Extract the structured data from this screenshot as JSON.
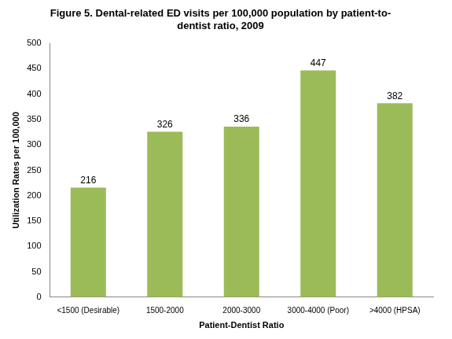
{
  "chart_data": {
    "type": "bar",
    "title": "Figure 5. Dental-related ED visits per 100,000 population by patient-to-dentist ratio, 2009",
    "x_label": "Patient-Dentist Ratio",
    "y_label": "Utilization Rates per 100,000",
    "categories": [
      "<1500 (Desirable)",
      "1500-2000",
      "2000-3000",
      "3000-4000 (Poor)",
      ">4000 (HPSA)"
    ],
    "values": [
      216,
      326,
      336,
      447,
      382
    ],
    "color": "#9bbb59",
    "ylim": [
      0,
      500
    ],
    "yticks": [
      0,
      50,
      100,
      150,
      200,
      250,
      300,
      350,
      400,
      450,
      500
    ],
    "grid": false,
    "data_labels": true
  }
}
